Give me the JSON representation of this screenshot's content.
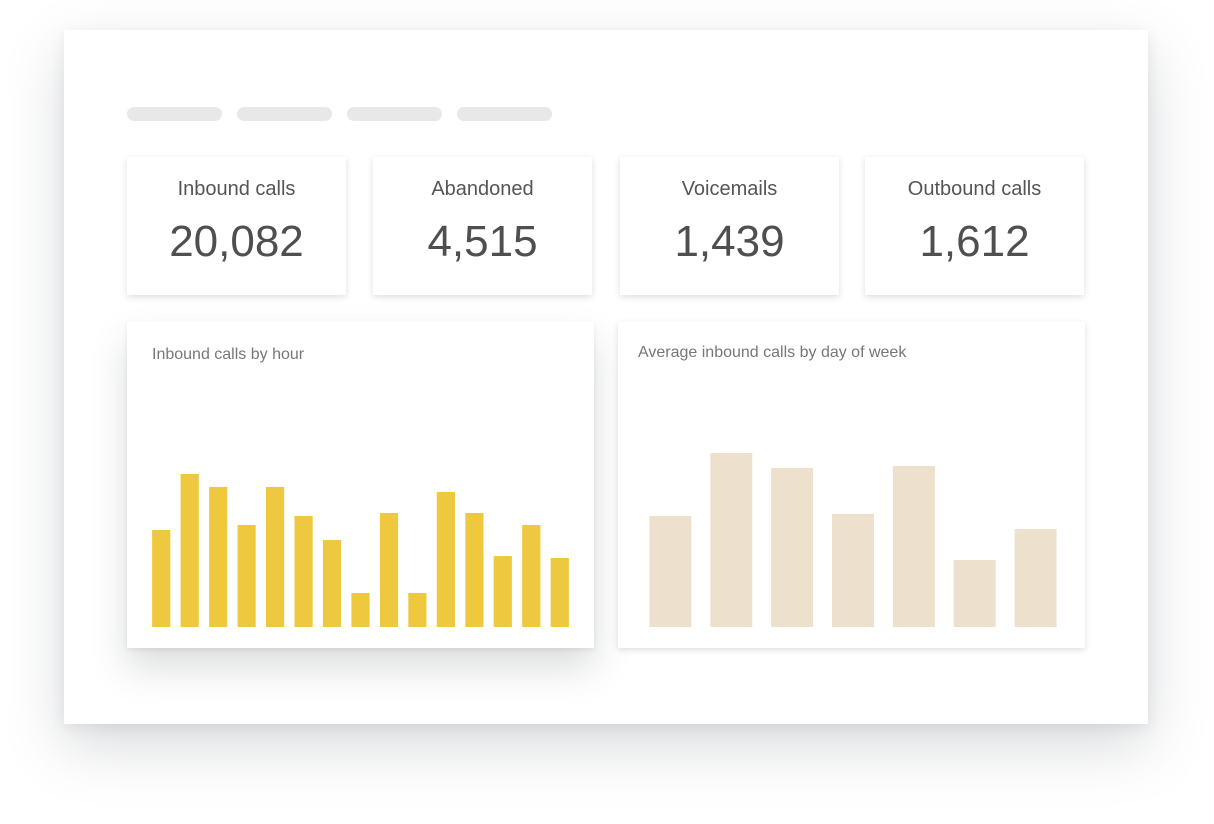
{
  "stats": [
    {
      "label": "Inbound calls",
      "value": "20,082"
    },
    {
      "label": "Abandoned",
      "value": "4,515"
    },
    {
      "label": "Voicemails",
      "value": "1,439"
    },
    {
      "label": "Outbound calls",
      "value": "1,612"
    }
  ],
  "colors": {
    "hourly_bar": "#EEC940",
    "weekly_bar": "#EDE1CE",
    "tab_placeholder": "#E8E8E8"
  },
  "chart_data": [
    {
      "type": "bar",
      "title": "Inbound calls by hour",
      "xlabel": "",
      "ylabel": "",
      "grid": false,
      "legend": "none",
      "ylim": [
        0,
        180
      ],
      "values": [
        97,
        153,
        140,
        102,
        140,
        111,
        87,
        34,
        114,
        34,
        135,
        114,
        71,
        102,
        69
      ]
    },
    {
      "type": "bar",
      "title": "Average inbound calls by day of week",
      "xlabel": "",
      "ylabel": "",
      "grid": false,
      "legend": "none",
      "ylim": [
        0,
        200
      ],
      "values": [
        111,
        174,
        159,
        113,
        161,
        67,
        98
      ]
    }
  ]
}
